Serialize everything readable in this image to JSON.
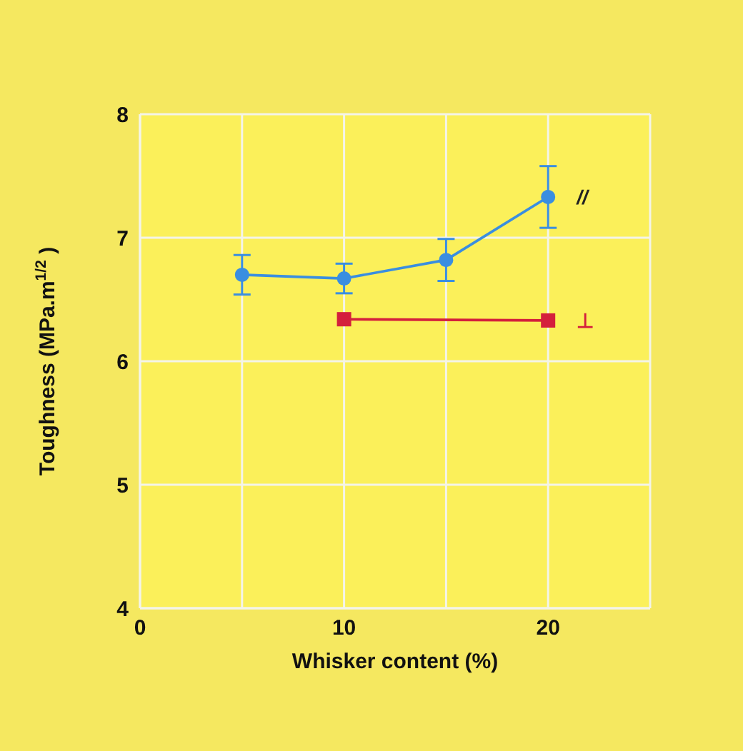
{
  "chart_data": {
    "type": "line",
    "xlabel": "Whisker content (%)",
    "ylabel": "Toughness (MPa.m$^{1/2}$ )",
    "xlim": [
      0,
      25
    ],
    "xticks": [
      0,
      {
        "value": 5,
        "label": null
      },
      10,
      {
        "value": 15,
        "label": null
      },
      20,
      {
        "value": 25,
        "label": null
      }
    ],
    "ylim": [
      4,
      8
    ],
    "yticks": [
      4,
      5,
      6,
      7,
      8
    ],
    "grid": true,
    "legend": false,
    "series": [
      {
        "name": "//",
        "color": "#3a8ee0",
        "marker": "circle",
        "x": [
          5,
          10,
          15,
          20
        ],
        "values": [
          6.7,
          6.67,
          6.82,
          7.33
        ],
        "errors": [
          0.16,
          0.12,
          0.17,
          0.25
        ]
      },
      {
        "name": "⊥",
        "color": "#d41f3c",
        "marker": "square",
        "x": [
          10,
          20
        ],
        "values": [
          6.34,
          6.33
        ]
      }
    ]
  }
}
